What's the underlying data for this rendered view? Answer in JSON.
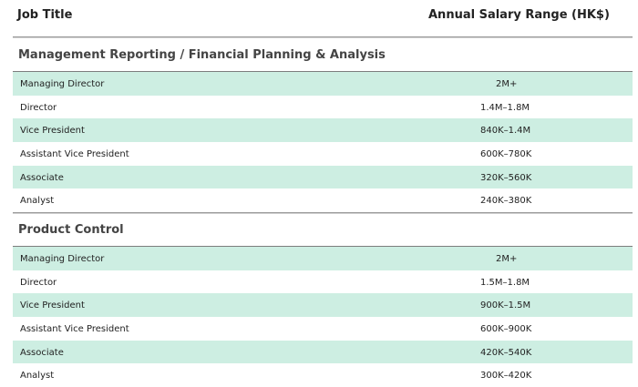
{
  "header": {
    "job_title": "Job Title",
    "salary_range": "Annual Salary Range (HK$)"
  },
  "sections": [
    {
      "title": "Management Reporting / Financial Planning & Analysis",
      "rows": [
        {
          "title": "Managing Director",
          "salary": "2M+"
        },
        {
          "title": "Director",
          "salary": "1.4M–1.8M"
        },
        {
          "title": "Vice President",
          "salary": "840K–1.4M"
        },
        {
          "title": "Assistant Vice President",
          "salary": "600K–780K"
        },
        {
          "title": "Associate",
          "salary": "320K–560K"
        },
        {
          "title": "Analyst",
          "salary": "240K–380K"
        }
      ]
    },
    {
      "title": "Product Control",
      "rows": [
        {
          "title": "Managing Director",
          "salary": "2M+"
        },
        {
          "title": "Director",
          "salary": "1.5M–1.8M"
        },
        {
          "title": "Vice President",
          "salary": "900K–1.5M"
        },
        {
          "title": "Assistant Vice President",
          "salary": "600K–900K"
        },
        {
          "title": "Associate",
          "salary": "420K–540K"
        },
        {
          "title": "Analyst",
          "salary": "300K–420K"
        }
      ]
    }
  ],
  "colors": {
    "row_shade": "#cdeee2"
  }
}
